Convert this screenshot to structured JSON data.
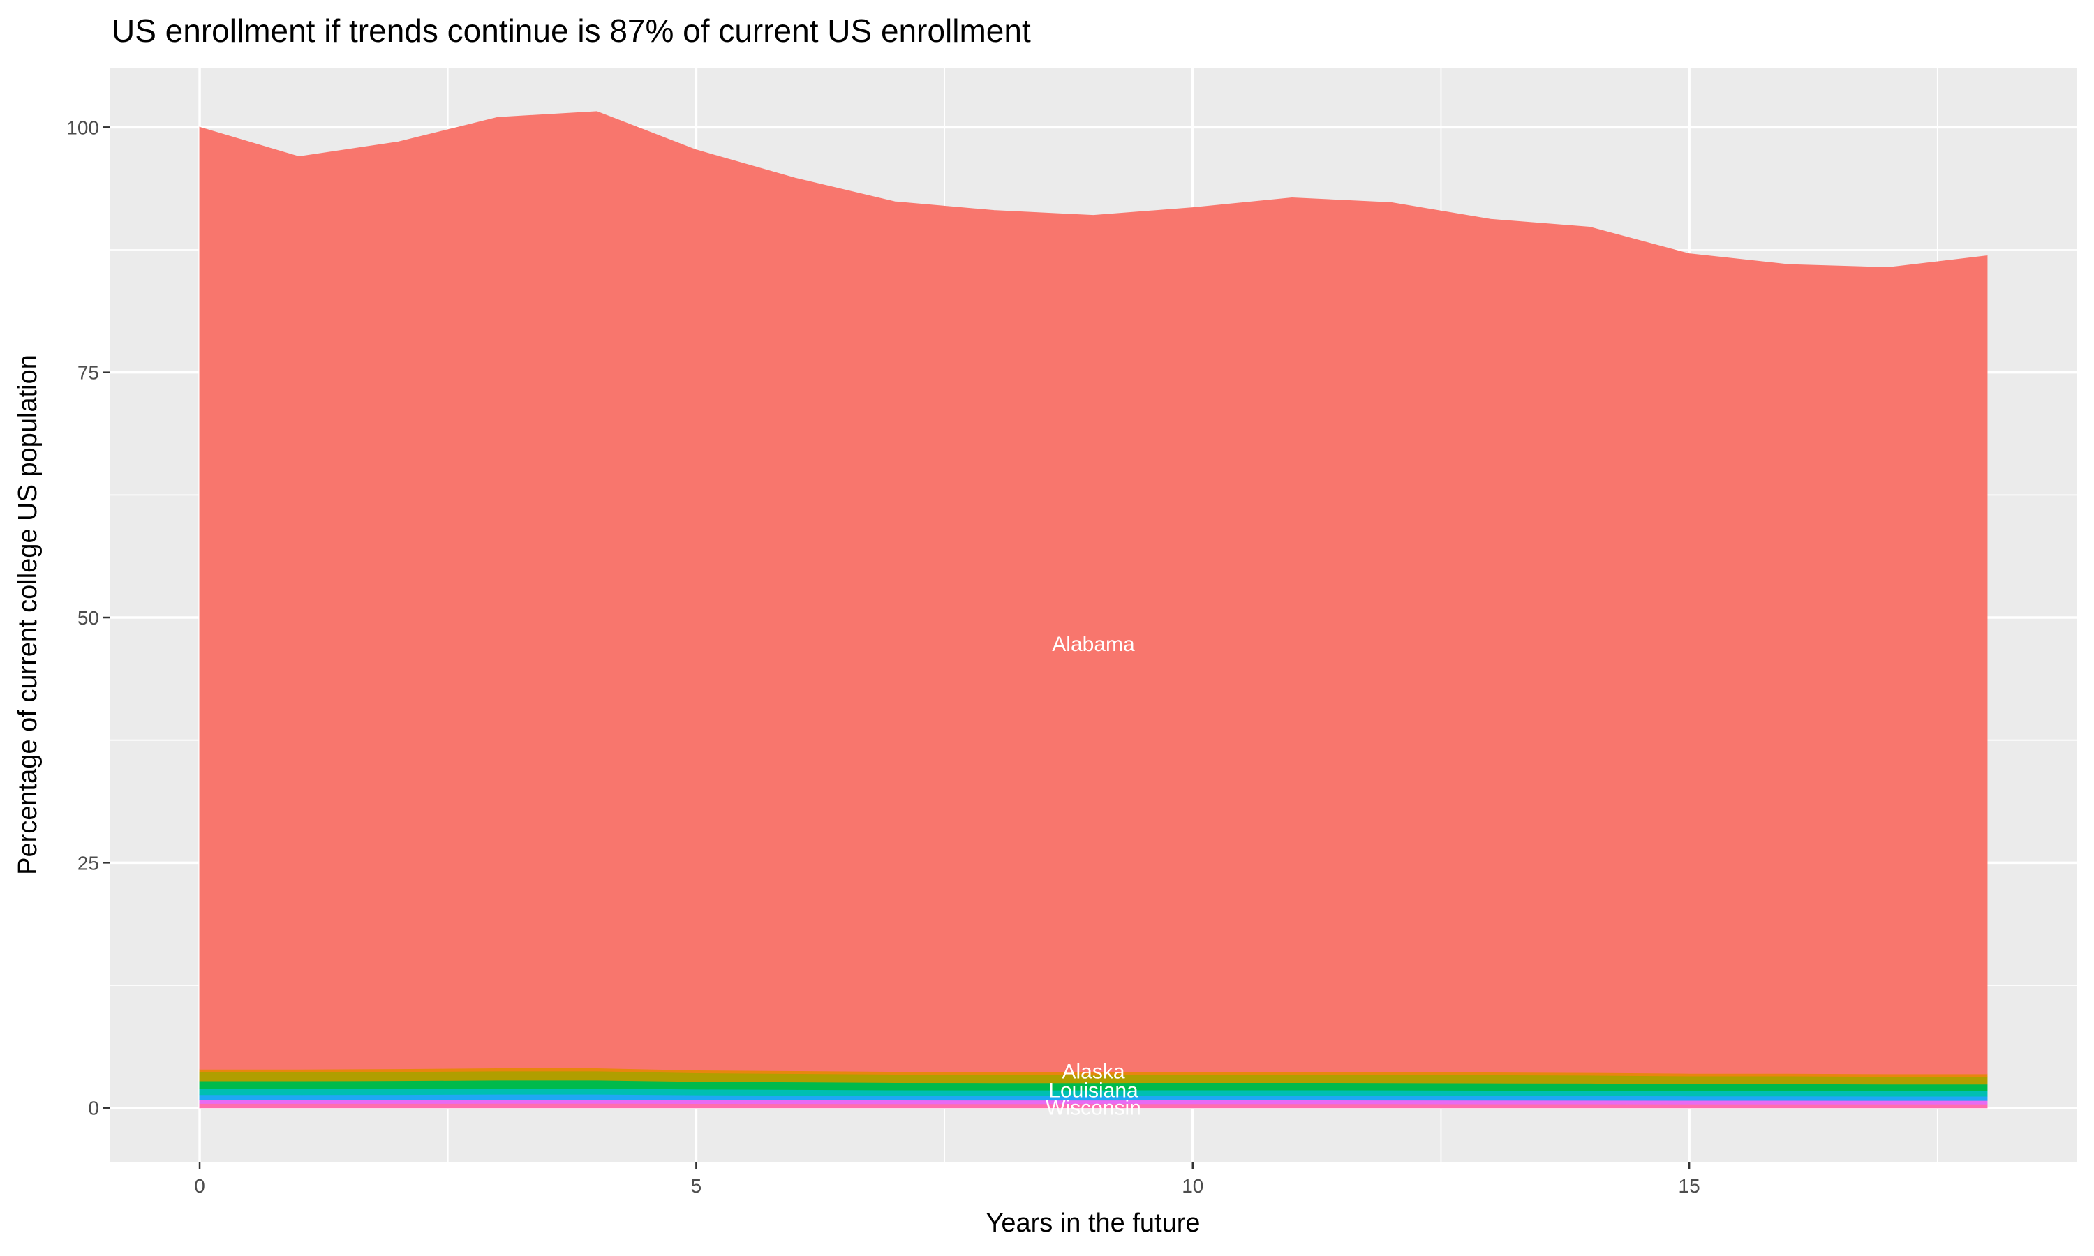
{
  "chart_data": {
    "type": "area",
    "stacked": true,
    "title": "US enrollment if trends continue is 87% of current US enrollment",
    "xlabel": "Years in the future",
    "ylabel": "Percentage of current college US population",
    "xlim": [
      -0.9,
      18.9
    ],
    "ylim": [
      -5.5,
      106
    ],
    "x_ticks": [
      0,
      5,
      10,
      15
    ],
    "y_ticks": [
      0,
      25,
      50,
      75,
      100
    ],
    "grid": true,
    "background": "#EBEBEB",
    "x": [
      0,
      1,
      2,
      3,
      4,
      5,
      6,
      7,
      8,
      9,
      10,
      11,
      12,
      13,
      14,
      15,
      16,
      17,
      18
    ],
    "series": [
      {
        "color": "#FF6DAE",
        "values": [
          0.45,
          0.45,
          0.45,
          0.46,
          0.46,
          0.44,
          0.43,
          0.42,
          0.42,
          0.42,
          0.42,
          0.42,
          0.42,
          0.41,
          0.41,
          0.4,
          0.4,
          0.4,
          0.4
        ]
      },
      {
        "color": "#E76BF3",
        "values": [
          0.4,
          0.4,
          0.4,
          0.41,
          0.41,
          0.39,
          0.38,
          0.38,
          0.37,
          0.37,
          0.38,
          0.38,
          0.37,
          0.37,
          0.36,
          0.36,
          0.36,
          0.35,
          0.35
        ]
      },
      {
        "color": "#1FA7F5",
        "values": [
          0.5,
          0.5,
          0.51,
          0.52,
          0.52,
          0.49,
          0.48,
          0.47,
          0.47,
          0.47,
          0.47,
          0.47,
          0.47,
          0.46,
          0.46,
          0.45,
          0.45,
          0.44,
          0.44
        ]
      },
      {
        "color": "#00BFB2",
        "values": [
          0.6,
          0.6,
          0.61,
          0.62,
          0.62,
          0.59,
          0.58,
          0.56,
          0.56,
          0.56,
          0.56,
          0.56,
          0.56,
          0.55,
          0.55,
          0.53,
          0.53,
          0.53,
          0.53
        ]
      },
      {
        "color": "#00BA4C",
        "values": [
          0.8,
          0.8,
          0.81,
          0.82,
          0.82,
          0.78,
          0.77,
          0.75,
          0.74,
          0.74,
          0.75,
          0.75,
          0.74,
          0.74,
          0.73,
          0.71,
          0.71,
          0.7,
          0.7
        ]
      },
      {
        "color": "#B09E00",
        "values": [
          0.9,
          0.9,
          0.91,
          0.93,
          0.93,
          0.88,
          0.86,
          0.85,
          0.84,
          0.84,
          0.85,
          0.85,
          0.84,
          0.83,
          0.82,
          0.8,
          0.8,
          0.79,
          0.79
        ]
      },
      {
        "color": "#E8860E",
        "values": [
          0.3,
          0.3,
          0.3,
          0.31,
          0.31,
          0.29,
          0.29,
          0.28,
          0.28,
          0.28,
          0.28,
          0.28,
          0.28,
          0.28,
          0.27,
          0.27,
          0.27,
          0.26,
          0.26
        ]
      },
      {
        "name": "Alabama",
        "color": "#F8766D",
        "values": [
          96.05,
          93.05,
          94.51,
          96.93,
          97.53,
          93.83,
          91.01,
          88.69,
          87.83,
          87.33,
          88.09,
          89.09,
          88.63,
          86.97,
          86.21,
          83.58,
          82.48,
          82.22,
          83.42
        ]
      }
    ],
    "annotations": [
      {
        "text": "Alabama",
        "x": 9,
        "y": 47.3
      },
      {
        "text": "Alaska",
        "x": 9,
        "y": 3.7
      },
      {
        "text": "Louisiana",
        "x": 9,
        "y": 1.8
      },
      {
        "text": "Wisconsin",
        "x": 9,
        "y": 0
      }
    ]
  }
}
